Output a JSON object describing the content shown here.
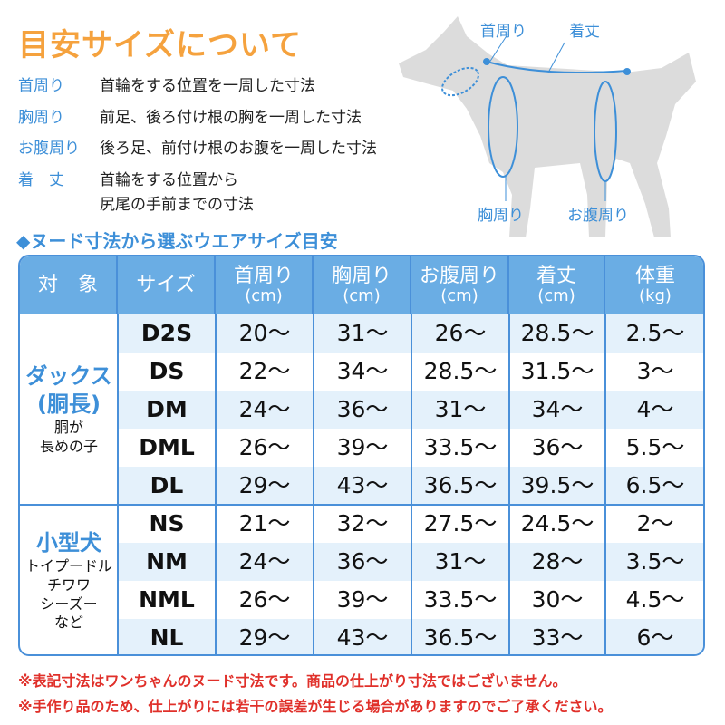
{
  "title": "目安サイズについて",
  "definitions": [
    {
      "term": "首周り",
      "desc": [
        "首輪をする位置を一周した寸法"
      ]
    },
    {
      "term": "胸周り",
      "desc": [
        "前足、後ろ付け根の胸を一周した寸法"
      ]
    },
    {
      "term": "お腹周り",
      "desc": [
        "後ろ足、前付け根のお腹を一周した寸法"
      ]
    },
    {
      "term": "着　丈",
      "desc": [
        "首輪をする位置から",
        "尻尾の手前までの寸法"
      ]
    }
  ],
  "diagram": {
    "neck": "首周り",
    "length": "着丈",
    "chest": "胸周り",
    "belly": "お腹周り",
    "colors": {
      "silhouette": "#dcdcdc",
      "line": "#3d8fd8"
    }
  },
  "subheading": "◆ヌード寸法から選ぶウエアサイズ目安",
  "table": {
    "headers": [
      {
        "l1": "対　象",
        "l2": ""
      },
      {
        "l1": "サイズ",
        "l2": ""
      },
      {
        "l1": "首周り",
        "l2": "(cm)"
      },
      {
        "l1": "胸周り",
        "l2": "(cm)"
      },
      {
        "l1": "お腹周り",
        "l2": "(cm)"
      },
      {
        "l1": "着丈",
        "l2": "(cm)"
      },
      {
        "l1": "体重",
        "l2": "(kg)"
      }
    ],
    "groups": [
      {
        "name": [
          "ダックス",
          "(胴長)"
        ],
        "sub": [
          "胴が",
          "長めの子"
        ],
        "rows": [
          [
            "D2S",
            "20〜",
            "31〜",
            "26〜",
            "28.5〜",
            "2.5〜"
          ],
          [
            "DS",
            "22〜",
            "34〜",
            "28.5〜",
            "31.5〜",
            "3〜"
          ],
          [
            "DM",
            "24〜",
            "36〜",
            "31〜",
            "34〜",
            "4〜"
          ],
          [
            "DML",
            "26〜",
            "39〜",
            "33.5〜",
            "36〜",
            "5.5〜"
          ],
          [
            "DL",
            "29〜",
            "43〜",
            "36.5〜",
            "39.5〜",
            "6.5〜"
          ]
        ]
      },
      {
        "name": [
          "小型犬"
        ],
        "sub": [
          "トイプードル",
          "チワワ",
          "シーズー",
          "など"
        ],
        "rows": [
          [
            "NS",
            "21〜",
            "32〜",
            "27.5〜",
            "24.5〜",
            "2〜"
          ],
          [
            "NM",
            "24〜",
            "36〜",
            "31〜",
            "28〜",
            "3.5〜"
          ],
          [
            "NML",
            "26〜",
            "39〜",
            "33.5〜",
            "30〜",
            "4.5〜"
          ],
          [
            "NL",
            "29〜",
            "43〜",
            "36.5〜",
            "33〜",
            "6〜"
          ]
        ]
      }
    ]
  },
  "notes": [
    "※表記寸法はワンちゃんのヌード寸法です。商品の仕上がり寸法ではございません。",
    "※手作り品のため、仕上がりには若干の誤差が生じる場合がありますのでご了承ください。"
  ],
  "colors": {
    "title": "#f5a23e",
    "accent": "#3d8fd8",
    "header": "#6aade4",
    "row_alt": "#e4f1fb",
    "note": "#e0302a"
  }
}
